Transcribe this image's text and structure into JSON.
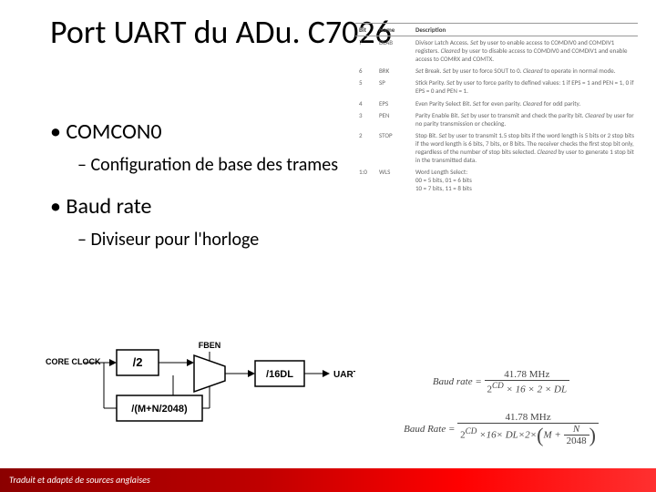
{
  "title": "Port UART du ADu. C7026",
  "bullets": {
    "b1": "COMCON0",
    "b1_sub": "Configuration de base des trames",
    "b2": "Baud rate",
    "b2_sub": "Diviseur pour l'horloge"
  },
  "table": {
    "headers": {
      "bit": "Bit",
      "name": "Name",
      "desc": "Description"
    },
    "rows": [
      {
        "bit": "7",
        "name": "DLAB",
        "desc": "Divisor Latch Access. Set by user to enable access to COMDIV0 and COMDIV1 registers. Cleared by user to disable access to COMDIV0 and COMDIV1 and enable access to COMRX and COMTX."
      },
      {
        "bit": "6",
        "name": "BRK",
        "desc": "Set Break. Set by user to force SOUT to 0. Cleared to operate in normal mode."
      },
      {
        "bit": "5",
        "name": "SP",
        "desc": "Stick Parity. Set by user to force parity to defined values: 1 if EPS = 1 and PEN = 1, 0 if EPS = 0 and PEN = 1."
      },
      {
        "bit": "4",
        "name": "EPS",
        "desc": "Even Parity Select Bit. Set for even parity. Cleared for odd parity."
      },
      {
        "bit": "3",
        "name": "PEN",
        "desc": "Parity Enable Bit. Set by user to transmit and check the parity bit. Cleared by user for no parity transmission or checking."
      },
      {
        "bit": "2",
        "name": "STOP",
        "desc": "Stop Bit. Set by user to transmit 1.5 stop bits if the word length is 5 bits or 2 stop bits if the word length is 6 bits, 7 bits, or 8 bits. The receiver checks the first stop bit only, regardless of the number of stop bits selected. Cleared by user to generate 1 stop bit in the transmitted data."
      },
      {
        "bit": "1:0",
        "name": "WLS",
        "desc": "Word Length Select:\n00 = 5 bits, 01 = 6 bits\n10 = 7 bits, 11 = 8 bits"
      }
    ]
  },
  "circuit": {
    "core_clock": "CORE CLOCK",
    "div2": "/2",
    "fben": "FBEN",
    "divmn": "/(M+N/2048)",
    "div16dl": "/16DL",
    "uart": "UART"
  },
  "formula": {
    "lhs1": "Baud rate =",
    "num1": "41.78 MHz",
    "den1_a": "2",
    "den1_cd": "CD",
    "den1_rest": " × 16 × 2 × DL",
    "lhs2": "Baud Rate =",
    "num2": "41.78 MHz",
    "den2_a": "2",
    "den2_cd": "CD",
    "den2_mid": " ×16× DL×2×",
    "den2_m": "M + ",
    "den2_n": "N",
    "den2_2048": "2048"
  },
  "footer": "Traduit et adapté de sources anglaises",
  "colors": {
    "footer_start": "#8b0000",
    "footer_end": "#ff3030",
    "text": "#000000",
    "table_text": "#666666"
  }
}
